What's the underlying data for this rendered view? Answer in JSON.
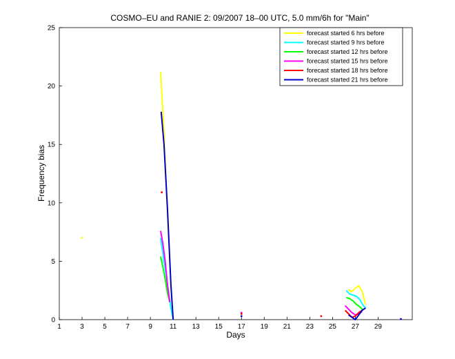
{
  "chart_data": {
    "type": "line",
    "title": "COSMO–EU and RANIE 2: 09/2007 18–00 UTC, 5.0 mm/6h for \"Main\"",
    "xlabel": "Days",
    "ylabel": "Frequency bias",
    "xlim": [
      1,
      32
    ],
    "ylim": [
      0,
      25
    ],
    "xticks": [
      1,
      3,
      5,
      7,
      9,
      11,
      13,
      15,
      17,
      19,
      21,
      23,
      25,
      27,
      29
    ],
    "yticks": [
      0,
      5,
      10,
      15,
      20,
      25
    ],
    "grid": false,
    "legend_position": "top-right",
    "series": [
      {
        "name": "forecast started 6 hrs before",
        "color": "#ffff00",
        "segments": [
          [
            [
              3,
              7.0
            ]
          ],
          [
            [
              9.9,
              21.2
            ],
            [
              10.2,
              16.0
            ],
            [
              10.5,
              9.0
            ],
            [
              10.8,
              3.0
            ],
            [
              11.0,
              0.0
            ]
          ],
          [
            [
              26.4,
              2.6
            ],
            [
              26.6,
              2.4
            ],
            [
              26.8,
              2.5
            ],
            [
              27.0,
              2.7
            ],
            [
              27.3,
              2.9
            ],
            [
              27.6,
              2.4
            ],
            [
              27.9,
              1.3
            ]
          ]
        ]
      },
      {
        "name": "forecast started 9 hrs before",
        "color": "#00ffff",
        "segments": [
          [
            [
              9.9,
              7.0
            ],
            [
              10.2,
              5.0
            ],
            [
              10.5,
              3.0
            ],
            [
              10.8,
              1.0
            ],
            [
              11.0,
              0.0
            ]
          ],
          [
            [
              26.2,
              2.5
            ],
            [
              26.5,
              2.2
            ],
            [
              26.8,
              2.1
            ],
            [
              27.1,
              2.0
            ],
            [
              27.4,
              1.7
            ],
            [
              27.7,
              1.2
            ],
            [
              27.9,
              1.0
            ]
          ]
        ]
      },
      {
        "name": "forecast started 12 hrs before",
        "color": "#00ff00",
        "segments": [
          [
            [
              9.9,
              5.4
            ],
            [
              10.1,
              4.5
            ],
            [
              10.3,
              3.5
            ],
            [
              10.5,
              2.3
            ],
            [
              10.7,
              1.5
            ]
          ],
          [
            [
              26.2,
              1.9
            ],
            [
              26.5,
              1.8
            ],
            [
              26.8,
              1.6
            ],
            [
              27.1,
              1.3
            ],
            [
              27.4,
              1.1
            ],
            [
              27.7,
              0.8
            ]
          ]
        ]
      },
      {
        "name": "forecast started 15 hrs before",
        "color": "#ff00ff",
        "segments": [
          [
            [
              9.9,
              7.6
            ],
            [
              10.1,
              6.5
            ],
            [
              10.3,
              5.0
            ],
            [
              10.5,
              3.0
            ],
            [
              10.7,
              1.5
            ]
          ],
          [
            [
              17.0,
              0.6
            ]
          ],
          [
            [
              26.1,
              1.2
            ],
            [
              26.4,
              0.9
            ],
            [
              26.7,
              0.6
            ],
            [
              27.0,
              0.4
            ],
            [
              27.3,
              0.5
            ],
            [
              27.6,
              0.7
            ]
          ]
        ]
      },
      {
        "name": "forecast started 18 hrs before",
        "color": "#ff0000",
        "segments": [
          [
            [
              10.0,
              10.9
            ]
          ],
          [
            [
              17.0,
              0.5
            ]
          ],
          [
            [
              24.0,
              0.3
            ]
          ],
          [
            [
              26.1,
              0.8
            ],
            [
              26.4,
              0.5
            ],
            [
              26.7,
              0.2
            ],
            [
              27.0,
              0.3
            ],
            [
              27.3,
              0.6
            ],
            [
              27.6,
              0.8
            ]
          ]
        ]
      },
      {
        "name": "forecast started 21 hrs before",
        "color": "#0000cc",
        "segments": [
          [
            [
              9.95,
              17.8
            ],
            [
              10.2,
              15.0
            ],
            [
              10.5,
              9.5
            ],
            [
              10.8,
              3.0
            ],
            [
              11.0,
              0.0
            ]
          ],
          [
            [
              17.0,
              0.3
            ]
          ],
          [
            [
              26.4,
              0.4
            ],
            [
              26.7,
              0.2
            ],
            [
              27.0,
              0.0
            ],
            [
              27.3,
              0.4
            ],
            [
              27.6,
              0.8
            ],
            [
              27.9,
              1.0
            ]
          ],
          [
            [
              31.0,
              0.05
            ]
          ]
        ]
      }
    ]
  }
}
